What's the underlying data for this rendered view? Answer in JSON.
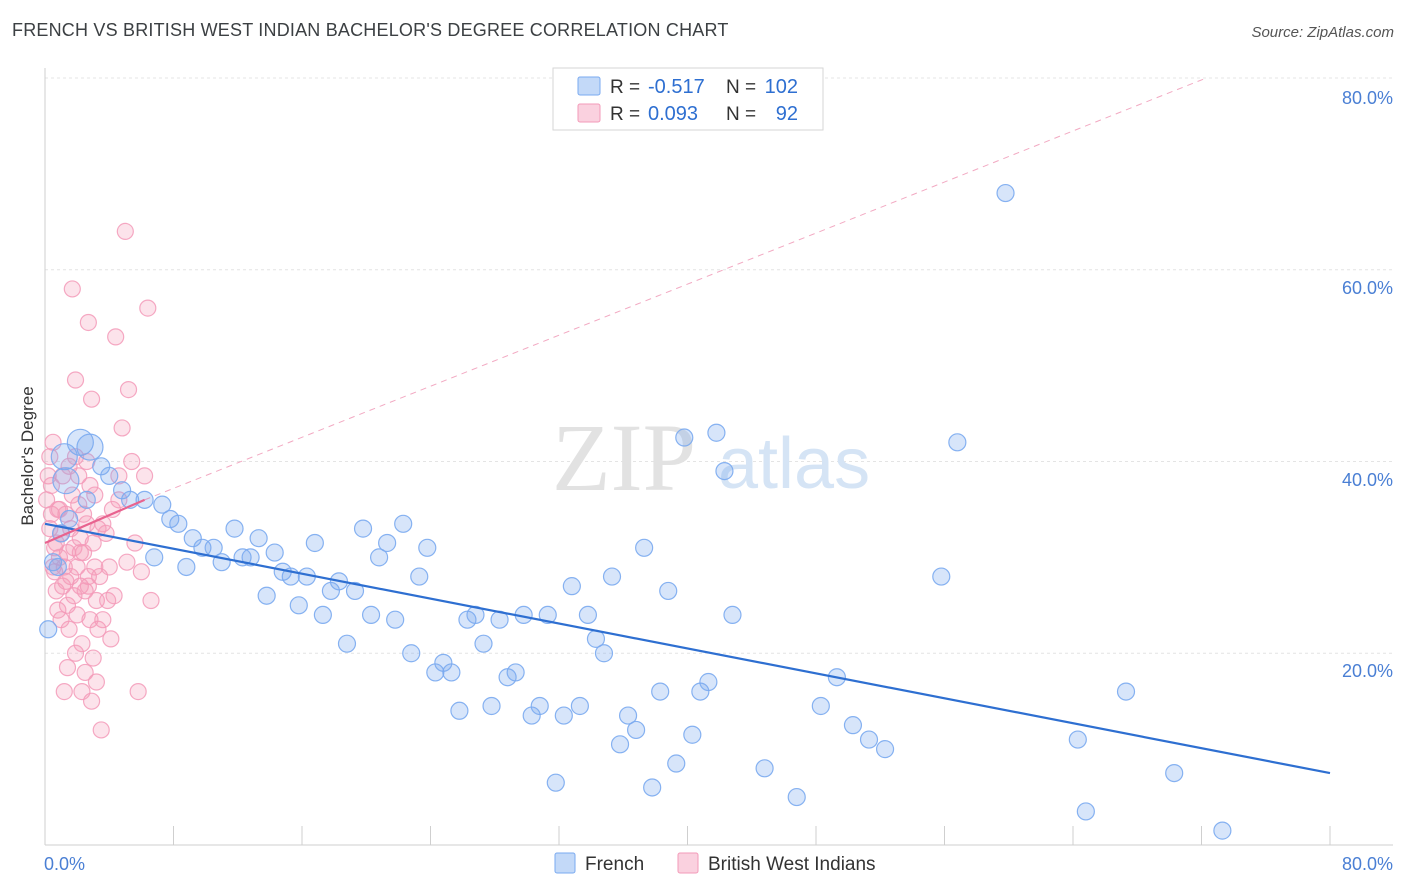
{
  "header": {
    "title": "FRENCH VS BRITISH WEST INDIAN BACHELOR'S DEGREE CORRELATION CHART",
    "source": "Source: ZipAtlas.com"
  },
  "watermark": {
    "zip": "ZIP",
    "atlas": "atlas"
  },
  "legend_top": {
    "rows": [
      {
        "r_label": "R =",
        "r_value": "-0.517",
        "n_label": "N =",
        "n_value": "102",
        "color": "#7aaaf0"
      },
      {
        "r_label": "R =",
        "r_value": "0.093",
        "n_label": "N =",
        "n_value": "92",
        "color": "#f39ab8"
      }
    ]
  },
  "legend_bottom": {
    "items": [
      {
        "label": "French",
        "color": "#7aaaf0"
      },
      {
        "label": "British West Indians",
        "color": "#f39ab8"
      }
    ]
  },
  "chart_data": {
    "type": "scatter",
    "title": "FRENCH VS BRITISH WEST INDIAN BACHELOR'S DEGREE CORRELATION CHART",
    "xlabel": "",
    "ylabel": "Bachelor's Degree",
    "xlim": [
      0,
      80
    ],
    "ylim": [
      0,
      80
    ],
    "x_tick_labels": [
      "0.0%",
      "80.0%"
    ],
    "y_tick_labels": [
      "20.0%",
      "40.0%",
      "60.0%",
      "80.0%"
    ],
    "y_ticks": [
      20,
      40,
      60,
      80
    ],
    "colors": {
      "french": "#7aaaf0",
      "bwi": "#f39ab8",
      "french_line": "#2e6fd1",
      "bwi_line": "#e8638f"
    },
    "series": [
      {
        "name": "French",
        "r": -0.517,
        "n": 102,
        "trend": {
          "x": [
            0,
            80
          ],
          "y": [
            33.5,
            7.5
          ]
        },
        "points": [
          [
            0.2,
            22.5
          ],
          [
            0.5,
            29.5
          ],
          [
            0.8,
            29.0
          ],
          [
            1.0,
            32.5
          ],
          [
            1.3,
            38.0
          ],
          [
            1.5,
            34.0
          ],
          [
            2.2,
            42.0
          ],
          [
            2.8,
            41.5
          ],
          [
            3.5,
            39.5
          ],
          [
            4.0,
            38.5
          ],
          [
            4.8,
            37.0
          ],
          [
            5.3,
            36.0
          ],
          [
            6.2,
            36.0
          ],
          [
            6.8,
            30.0
          ],
          [
            7.3,
            35.5
          ],
          [
            7.8,
            34.0
          ],
          [
            8.3,
            33.5
          ],
          [
            8.8,
            29.0
          ],
          [
            9.2,
            32.0
          ],
          [
            9.8,
            31.0
          ],
          [
            10.5,
            31.0
          ],
          [
            11.0,
            29.5
          ],
          [
            11.8,
            33.0
          ],
          [
            12.3,
            30.0
          ],
          [
            12.8,
            30.0
          ],
          [
            13.3,
            32.0
          ],
          [
            13.8,
            26.0
          ],
          [
            14.3,
            30.5
          ],
          [
            14.8,
            28.5
          ],
          [
            15.3,
            28.0
          ],
          [
            15.8,
            25.0
          ],
          [
            16.3,
            28.0
          ],
          [
            16.8,
            31.5
          ],
          [
            17.3,
            24.0
          ],
          [
            17.8,
            26.5
          ],
          [
            18.3,
            27.5
          ],
          [
            18.8,
            21.0
          ],
          [
            19.3,
            26.5
          ],
          [
            19.8,
            33.0
          ],
          [
            20.3,
            24.0
          ],
          [
            20.8,
            30.0
          ],
          [
            21.3,
            31.5
          ],
          [
            21.8,
            23.5
          ],
          [
            22.3,
            33.5
          ],
          [
            22.8,
            20.0
          ],
          [
            23.3,
            28.0
          ],
          [
            23.8,
            31.0
          ],
          [
            24.3,
            18.0
          ],
          [
            24.8,
            19.0
          ],
          [
            25.3,
            18.0
          ],
          [
            25.8,
            14.0
          ],
          [
            26.3,
            23.5
          ],
          [
            26.8,
            24.0
          ],
          [
            27.3,
            21.0
          ],
          [
            27.8,
            14.5
          ],
          [
            28.3,
            23.5
          ],
          [
            28.8,
            17.5
          ],
          [
            29.3,
            18.0
          ],
          [
            29.8,
            24.0
          ],
          [
            30.3,
            13.5
          ],
          [
            30.8,
            14.5
          ],
          [
            31.3,
            24.0
          ],
          [
            31.8,
            6.5
          ],
          [
            32.3,
            13.5
          ],
          [
            32.8,
            27.0
          ],
          [
            33.3,
            14.5
          ],
          [
            33.8,
            24.0
          ],
          [
            34.3,
            21.5
          ],
          [
            34.8,
            20.0
          ],
          [
            35.3,
            28.0
          ],
          [
            35.8,
            10.5
          ],
          [
            36.3,
            13.5
          ],
          [
            36.8,
            12.0
          ],
          [
            37.3,
            31.0
          ],
          [
            37.8,
            6.0
          ],
          [
            38.3,
            16.0
          ],
          [
            38.8,
            26.5
          ],
          [
            39.3,
            8.5
          ],
          [
            39.8,
            42.5
          ],
          [
            40.3,
            11.5
          ],
          [
            40.8,
            16.0
          ],
          [
            41.3,
            17.0
          ],
          [
            41.8,
            43.0
          ],
          [
            42.3,
            39.0
          ],
          [
            42.8,
            24.0
          ],
          [
            44.8,
            8.0
          ],
          [
            46.8,
            5.0
          ],
          [
            48.3,
            14.5
          ],
          [
            49.3,
            17.5
          ],
          [
            50.3,
            12.5
          ],
          [
            51.3,
            11.0
          ],
          [
            52.3,
            10.0
          ],
          [
            55.8,
            28.0
          ],
          [
            56.8,
            42.0
          ],
          [
            59.8,
            68.0
          ],
          [
            64.3,
            11.0
          ],
          [
            64.8,
            3.5
          ],
          [
            67.3,
            16.0
          ],
          [
            70.3,
            7.5
          ],
          [
            73.3,
            1.5
          ],
          [
            1.2,
            40.5
          ],
          [
            2.6,
            36.0
          ]
        ]
      },
      {
        "name": "British West Indians",
        "r": 0.093,
        "n": 92,
        "trend": {
          "x": [
            0,
            6.2
          ],
          "y": [
            31.5,
            36.0
          ]
        },
        "ref_line": {
          "x": [
            6.2,
            72.3
          ],
          "y": [
            36.0,
            80.0
          ]
        },
        "points": [
          [
            0.1,
            36.0
          ],
          [
            0.2,
            38.5
          ],
          [
            0.3,
            33.0
          ],
          [
            0.4,
            34.5
          ],
          [
            0.4,
            37.5
          ],
          [
            0.5,
            42.0
          ],
          [
            0.5,
            29.0
          ],
          [
            0.6,
            28.5
          ],
          [
            0.7,
            31.5
          ],
          [
            0.7,
            26.5
          ],
          [
            0.8,
            35.0
          ],
          [
            0.8,
            24.5
          ],
          [
            0.9,
            30.0
          ],
          [
            1.0,
            32.5
          ],
          [
            1.0,
            23.5
          ],
          [
            1.1,
            27.0
          ],
          [
            1.1,
            38.5
          ],
          [
            1.2,
            29.0
          ],
          [
            1.2,
            16.0
          ],
          [
            1.3,
            34.5
          ],
          [
            1.3,
            27.5
          ],
          [
            1.4,
            30.5
          ],
          [
            1.4,
            25.0
          ],
          [
            1.5,
            39.5
          ],
          [
            1.5,
            22.5
          ],
          [
            1.6,
            33.0
          ],
          [
            1.6,
            28.0
          ],
          [
            1.7,
            58.0
          ],
          [
            1.7,
            36.5
          ],
          [
            1.8,
            31.0
          ],
          [
            1.8,
            26.0
          ],
          [
            1.9,
            48.5
          ],
          [
            1.9,
            20.0
          ],
          [
            2.0,
            29.0
          ],
          [
            2.0,
            24.0
          ],
          [
            2.1,
            38.5
          ],
          [
            2.1,
            35.5
          ],
          [
            2.2,
            32.0
          ],
          [
            2.2,
            27.0
          ],
          [
            2.3,
            21.0
          ],
          [
            2.3,
            16.0
          ],
          [
            2.4,
            34.5
          ],
          [
            2.4,
            30.5
          ],
          [
            2.5,
            26.5
          ],
          [
            2.5,
            18.0
          ],
          [
            2.6,
            40.0
          ],
          [
            2.6,
            33.5
          ],
          [
            2.7,
            54.5
          ],
          [
            2.7,
            28.0
          ],
          [
            2.8,
            37.5
          ],
          [
            2.8,
            23.5
          ],
          [
            2.9,
            46.5
          ],
          [
            2.9,
            15.0
          ],
          [
            3.0,
            31.5
          ],
          [
            3.0,
            19.5
          ],
          [
            3.1,
            36.5
          ],
          [
            3.1,
            29.0
          ],
          [
            3.2,
            25.5
          ],
          [
            3.2,
            17.0
          ],
          [
            3.3,
            33.0
          ],
          [
            3.3,
            22.5
          ],
          [
            3.4,
            28.0
          ],
          [
            3.5,
            12.0
          ],
          [
            3.6,
            23.5
          ],
          [
            3.8,
            32.5
          ],
          [
            3.9,
            25.5
          ],
          [
            4.0,
            29.0
          ],
          [
            4.1,
            21.5
          ],
          [
            4.2,
            35.0
          ],
          [
            4.3,
            26.0
          ],
          [
            4.4,
            53.0
          ],
          [
            4.6,
            38.5
          ],
          [
            4.8,
            43.5
          ],
          [
            5.0,
            64.0
          ],
          [
            5.2,
            47.5
          ],
          [
            5.4,
            40.0
          ],
          [
            5.6,
            31.5
          ],
          [
            5.8,
            16.0
          ],
          [
            6.0,
            28.5
          ],
          [
            6.2,
            38.5
          ],
          [
            6.4,
            56.0
          ],
          [
            6.6,
            25.5
          ],
          [
            0.3,
            40.5
          ],
          [
            0.6,
            31.0
          ],
          [
            0.9,
            35.0
          ],
          [
            1.4,
            18.5
          ],
          [
            1.9,
            40.5
          ],
          [
            2.2,
            30.5
          ],
          [
            2.7,
            27.0
          ],
          [
            3.6,
            33.5
          ],
          [
            4.6,
            36.0
          ],
          [
            5.1,
            29.5
          ]
        ]
      }
    ]
  }
}
